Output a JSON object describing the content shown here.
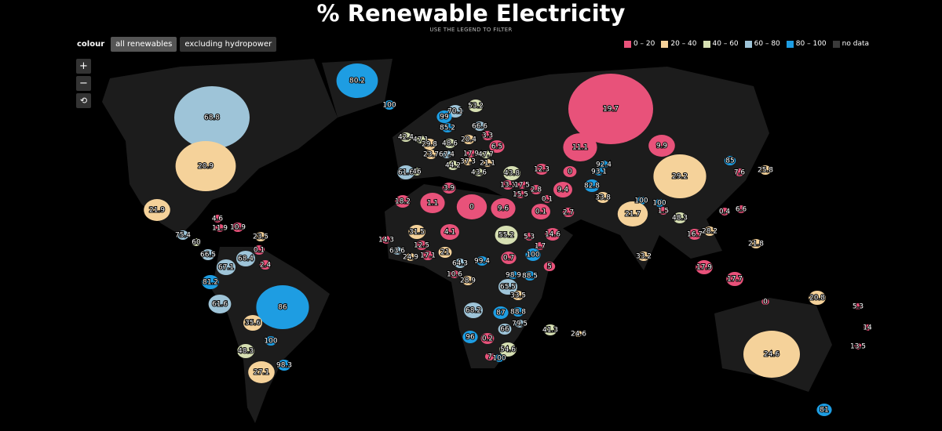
{
  "header": {
    "title": "% Renewable Electricity",
    "subtitle": "USE THE LEGEND TO FILTER"
  },
  "controls": {
    "label": "colour",
    "options": [
      "all renewables",
      "excluding hydropower"
    ],
    "zoom": [
      "+",
      "−"
    ]
  },
  "legend": {
    "items": [
      {
        "label": "0 – 20",
        "range": [
          0,
          20
        ],
        "color": "#e8527a"
      },
      {
        "label": "20 – 40",
        "range": [
          20,
          40
        ],
        "color": "#f5d29a"
      },
      {
        "label": "40 – 60",
        "range": [
          40,
          60
        ],
        "color": "#d6dfb2"
      },
      {
        "label": "60 – 80",
        "range": [
          60,
          80
        ],
        "color": "#9ec4d8"
      },
      {
        "label": "80 – 100",
        "range": [
          80,
          100
        ],
        "color": "#1e9de2"
      },
      {
        "label": "no data",
        "color": "#3a3a3a"
      }
    ]
  },
  "map": {
    "values": [
      68.8,
      20.9,
      21.9,
      4.6,
      11.9,
      10.9,
      23.5,
      75.4,
      60,
      66.5,
      0.1,
      68.4,
      67.1,
      2.4,
      81.2,
      61.6,
      86,
      35.6,
      100,
      48.3,
      98.3,
      27.1,
      80.2,
      100,
      53.2,
      70.1,
      99,
      66.6,
      85.2,
      3.3,
      42.4,
      47.1,
      20.4,
      29.8,
      48.6,
      6.5,
      17.9,
      47.7,
      23.7,
      67.4,
      21.1,
      37.3,
      44.2,
      61.6,
      46,
      43.6,
      43.8,
      12.3,
      0,
      13.3,
      17.5,
      15.5,
      2.8,
      9.4,
      19.7,
      11.1,
      9.9,
      92.4,
      93.1,
      82.8,
      33.8,
      29.2,
      85,
      25.8,
      7.6,
      100,
      100,
      21.7,
      1.5,
      48.3,
      0.4,
      6.6,
      16.7,
      28.2,
      33.2,
      21.8,
      17.9,
      17.7,
      20.8,
      5.3,
      14,
      24.6,
      41.3,
      13.5,
      24.6,
      81,
      0,
      3.9,
      18.2,
      1.1,
      0,
      9.6,
      0.1,
      0.1,
      2.7,
      31.5,
      4.1,
      55.2,
      5.3,
      14.6,
      14.3,
      12.5,
      1.7,
      63.6,
      24.9,
      17.1,
      21,
      0.7,
      100,
      64.3,
      99.4,
      5,
      10.6,
      98.9,
      88.5,
      28.9,
      65.5,
      33.5,
      68.2,
      87,
      88.8,
      79.5,
      66,
      96,
      0.2,
      54.6,
      7,
      100
    ]
  }
}
